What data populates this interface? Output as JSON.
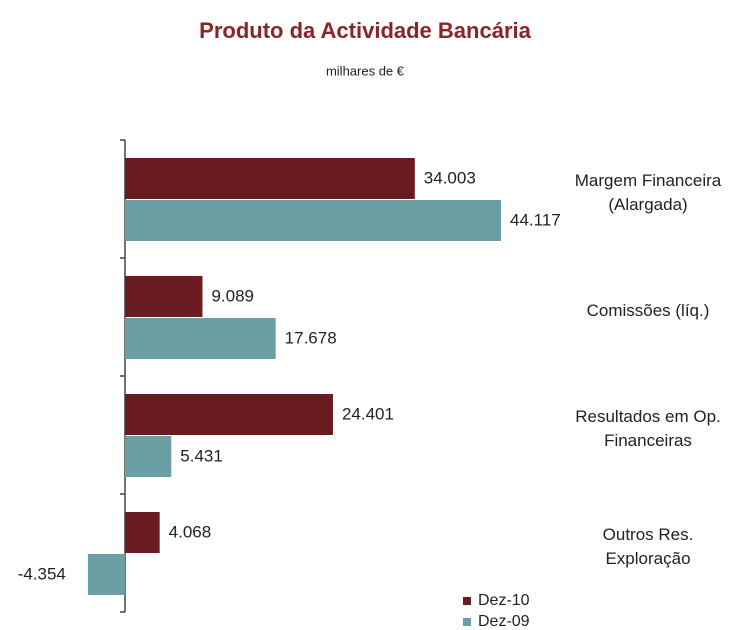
{
  "chart_data": {
    "type": "bar",
    "orientation": "horizontal",
    "title": "Produto da Actividade Bancária",
    "subtitle": "milhares de €",
    "categories": [
      "Margem Financeira (Alargada)",
      "Comissões (líq.)",
      "Resultados em Op. Financeiras",
      "Outros Res. Exploração"
    ],
    "series": [
      {
        "name": "Dez-10",
        "color": "#6a1b1f",
        "values": [
          34003,
          9089,
          24401,
          4068
        ],
        "value_labels": [
          "34.003",
          "9.089",
          "24.401",
          "4.068"
        ]
      },
      {
        "name": "Dez-09",
        "color": "#6a9fa3",
        "values": [
          44117,
          17678,
          5431,
          -4354
        ],
        "value_labels": [
          "44.117",
          "17.678",
          "5.431",
          "-4.354"
        ]
      }
    ],
    "legend": "bottom"
  }
}
